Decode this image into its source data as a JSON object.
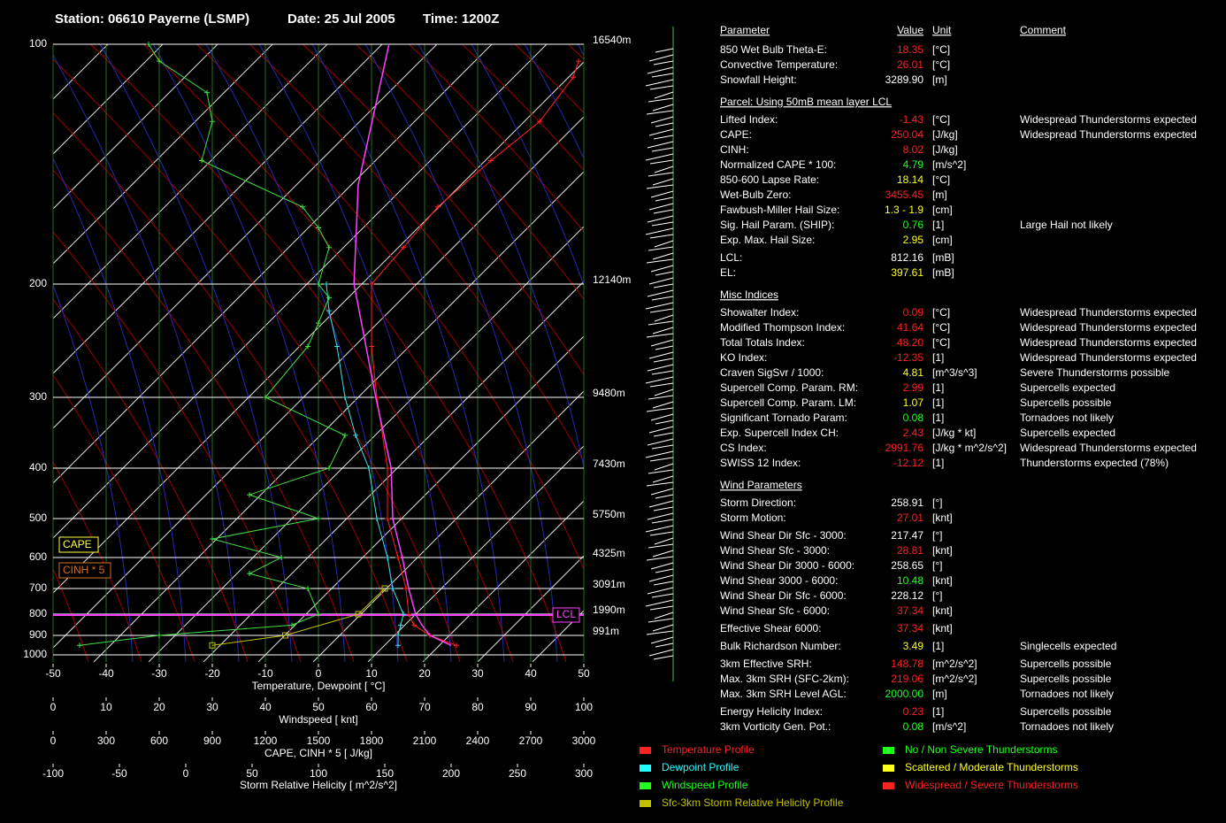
{
  "header": {
    "station": "Station: 06610 Payerne (LSMP)",
    "date": "Date: 25 Jul 2005",
    "time": "Time: 1200Z"
  },
  "diagram": {
    "pressure_ticks": [
      100,
      200,
      300,
      400,
      500,
      600,
      700,
      800,
      900,
      1000
    ],
    "height_labels": [
      "16540m",
      "12140m",
      "9480m",
      "7430m",
      "5750m",
      "4325m",
      "3091m",
      "1990m",
      "991m"
    ],
    "axes": {
      "temperature": {
        "label": "Temperature, Dewpoint  [ °C]",
        "lim": [
          -50,
          50
        ],
        "ticks": [
          -50,
          -40,
          -30,
          -20,
          -10,
          0,
          10,
          20,
          30,
          40,
          50
        ]
      },
      "windspeed": {
        "label": "Windspeed  [ knt]",
        "lim": [
          0,
          100
        ],
        "ticks": [
          0,
          10,
          20,
          30,
          40,
          50,
          60,
          70,
          80,
          90,
          100
        ]
      },
      "cape": {
        "label": "CAPE, CINH * 5  [ J/kg]",
        "lim": [
          0,
          3000
        ],
        "ticks": [
          0,
          300,
          600,
          900,
          1200,
          1500,
          1800,
          2100,
          2400,
          2700,
          3000
        ]
      },
      "srh": {
        "label": "Storm Relative Helicity  [ m^2/s^2]",
        "lim": [
          -100,
          300
        ],
        "ticks": [
          -100,
          -50,
          0,
          50,
          100,
          150,
          200,
          250,
          300
        ]
      }
    },
    "profiles": {
      "temperature": {
        "axis": "temperature",
        "color": "#ff2020",
        "pressure": [
          950,
          900,
          850,
          800,
          700,
          600,
          500,
          400,
          300,
          250,
          200,
          180,
          160,
          140,
          125,
          110,
          105
        ],
        "values": [
          26,
          21,
          18,
          17,
          16.5,
          15,
          13,
          13,
          11,
          10,
          10,
          16,
          22.5,
          32.5,
          41.7,
          48,
          49
        ]
      },
      "dewpoint": {
        "axis": "temperature",
        "color": "#40e0e0",
        "pressure": [
          950,
          900,
          850,
          800,
          700,
          600,
          500,
          400,
          350,
          300,
          250,
          220,
          200
        ],
        "values": [
          15,
          15,
          15.5,
          16,
          14,
          13,
          11,
          9.5,
          7,
          5,
          3.5,
          2,
          1.5
        ]
      },
      "parcel": {
        "axis": "temperature",
        "color": "#ff40ff",
        "pressure": [
          950,
          900,
          850,
          800,
          700,
          600,
          500,
          400,
          300,
          200,
          150,
          100
        ],
        "values": [
          25,
          21,
          19.5,
          18.3,
          17,
          15.8,
          14,
          13.7,
          10.8,
          6.7,
          7.5,
          13.3
        ]
      },
      "windspeed": {
        "axis": "windspeed",
        "color": "#40e040",
        "pressure": [
          950,
          900,
          850,
          800,
          700,
          650,
          600,
          550,
          500,
          450,
          400,
          350,
          300,
          250,
          230,
          210,
          200,
          180,
          170,
          160,
          140,
          125,
          115,
          105,
          100
        ],
        "values": [
          5,
          20,
          45,
          50,
          48,
          37,
          43,
          30,
          50,
          37,
          52,
          55,
          40,
          48,
          50,
          52,
          50,
          52,
          50,
          47,
          28,
          30,
          29,
          20,
          18
        ]
      },
      "srh": {
        "axis": "srh",
        "color": "#c0c000",
        "pressure": [
          950,
          900,
          800,
          700
        ],
        "values": [
          20,
          75,
          130,
          150
        ]
      }
    },
    "lcl_label": "LCL",
    "cape_label": "CAPE",
    "cinh_label": "CINH * 5"
  },
  "table": {
    "header": {
      "parameter": "Parameter",
      "value": "Value",
      "unit": "Unit",
      "comment": "Comment"
    },
    "sections": [
      {
        "rows": [
          {
            "name": "850 Wet Bulb Theta-E:",
            "value": "18.35",
            "unit": "[°C]",
            "color": "#ff2020"
          },
          {
            "name": "Convective Temperature:",
            "value": "26.01",
            "unit": "[°C]",
            "color": "#ff2020"
          },
          {
            "name": "Snowfall Height:",
            "value": "3289.90",
            "unit": "[m]",
            "color": "#ffffff"
          }
        ]
      },
      {
        "title": "Parcel: Using 50mB mean layer LCL",
        "rows": [
          {
            "name": "Lifted Index:",
            "value": "-1.43",
            "unit": "[°C]",
            "comment": "Widespread Thunderstorms expected",
            "color": "#ff2020"
          },
          {
            "name": "CAPE:",
            "value": "250.04",
            "unit": "[J/kg]",
            "comment": "Widespread Thunderstorms expected",
            "color": "#ff2020"
          },
          {
            "name": "CINH:",
            "value": "8.02",
            "unit": "[J/kg]",
            "color": "#ff2020"
          },
          {
            "name": "Normalized CAPE * 100:",
            "value": "4.79",
            "unit": "[m/s^2]",
            "color": "#20ff20"
          },
          {
            "name": "850-600 Lapse Rate:",
            "value": "18.14",
            "unit": "[°C]",
            "color": "#ffff20"
          },
          {
            "name": "Wet-Bulb Zero:",
            "value": "3455.45",
            "unit": "[m]",
            "color": "#ff2020"
          },
          {
            "name": "Fawbush-Miller Hail Size:",
            "value": "1.3 - 1.9",
            "unit": "[cm]",
            "color": "#ffff20"
          },
          {
            "name": "Sig. Hail Param. (SHIP):",
            "value": "0.76",
            "unit": "[1]",
            "comment": "Large Hail not likely",
            "color": "#20ff20"
          },
          {
            "name": "Exp. Max. Hail Size:",
            "value": "2.95",
            "unit": "[cm]",
            "color": "#ffff20"
          },
          {
            "name": "LCL:",
            "value": "812.16",
            "unit": "[mB]",
            "color": "#ffffff"
          },
          {
            "name": "EL:",
            "value": "397.61",
            "unit": "[mB]",
            "color": "#ffff20"
          }
        ]
      },
      {
        "title": "Misc Indices",
        "rows": [
          {
            "name": "Showalter Index:",
            "value": "0.09",
            "unit": "[°C]",
            "comment": "Widespread Thunderstorms expected",
            "color": "#ff2020"
          },
          {
            "name": "Modified Thompson Index:",
            "value": "41.64",
            "unit": "[°C]",
            "comment": "Widespread Thunderstorms expected",
            "color": "#ff2020"
          },
          {
            "name": "Total Totals Index:",
            "value": "48.20",
            "unit": "[°C]",
            "comment": "Widespread Thunderstorms expected",
            "color": "#ff2020"
          },
          {
            "name": "KO Index:",
            "value": "-12.35",
            "unit": "[1]",
            "comment": "Widespread Thunderstorms expected",
            "color": "#ff2020"
          },
          {
            "name": "Craven SigSvr / 1000:",
            "value": "4.81",
            "unit": "[m^3/s^3]",
            "comment": "Severe Thunderstorms possible",
            "color": "#ffff20"
          },
          {
            "name": "Supercell Comp. Param. RM:",
            "value": "2.99",
            "unit": "[1]",
            "comment": "Supercells expected",
            "color": "#ff2020"
          },
          {
            "name": "Supercell Comp. Param. LM:",
            "value": "1.07",
            "unit": "[1]",
            "comment": "Supercells possible",
            "color": "#ffff20"
          },
          {
            "name": "Significant Tornado Param:",
            "value": "0.08",
            "unit": "[1]",
            "comment": "Tornadoes not likely",
            "color": "#20ff20"
          },
          {
            "name": "Exp. Supercell Index CH:",
            "value": "2.43",
            "unit": "[J/kg * kt]",
            "comment": "Supercells expected",
            "color": "#ff2020"
          },
          {
            "name": "CS Index:",
            "value": "2991.76",
            "unit": "[J/kg * m^2/s^2]",
            "comment": "Widespread Thunderstorms expected",
            "color": "#ff2020"
          },
          {
            "name": "SWISS 12 Index:",
            "value": "-12.12",
            "unit": "[1]",
            "comment": "Thunderstorms expected (78%)",
            "color": "#ff2020"
          }
        ]
      },
      {
        "title": "Wind Parameters",
        "rows": [
          {
            "name": "Storm Direction:",
            "value": "258.91",
            "unit": "[°]",
            "color": "#ffffff"
          },
          {
            "name": "Storm Motion:",
            "value": "27.01",
            "unit": "[knt]",
            "color": "#ff2020"
          },
          {
            "name": "Wind Shear Dir Sfc - 3000:",
            "value": "217.47",
            "unit": "[°]",
            "color": "#ffffff"
          },
          {
            "name": "Wind Shear Sfc - 3000:",
            "value": "28.81",
            "unit": "[knt]",
            "color": "#ff2020"
          },
          {
            "name": "Wind Shear Dir 3000 - 6000:",
            "value": "258.65",
            "unit": "[°]",
            "color": "#ffffff"
          },
          {
            "name": "Wind Shear 3000 - 6000:",
            "value": "10.48",
            "unit": "[knt]",
            "color": "#20ff20"
          },
          {
            "name": "Wind Shear Dir Sfc - 6000:",
            "value": "228.12",
            "unit": "[°]",
            "color": "#ffffff"
          },
          {
            "name": "Wind Shear Sfc - 6000:",
            "value": "37.34",
            "unit": "[knt]",
            "color": "#ff2020"
          },
          {
            "name": "Effective Shear 6000:",
            "value": "37.34",
            "unit": "[knt]",
            "color": "#ff2020"
          },
          {
            "name": "Bulk Richardson Number:",
            "value": "3.49",
            "unit": "[1]",
            "comment": "Singlecells expected",
            "color": "#ffff20"
          },
          {
            "name": "3km Effective SRH:",
            "value": "148.78",
            "unit": "[m^2/s^2]",
            "comment": "Supercells possible",
            "color": "#ff2020"
          },
          {
            "name": "Max. 3km SRH (SFC-2km):",
            "value": "219.06",
            "unit": "[m^2/s^2]",
            "comment": "Supercells possible",
            "color": "#ff2020"
          },
          {
            "name": "Max. 3km SRH Level AGL:",
            "value": "2000.00",
            "unit": "[m]",
            "comment": "Tornadoes not likely",
            "color": "#20ff20"
          },
          {
            "name": "Energy Helicity Index:",
            "value": "0.23",
            "unit": "[1]",
            "comment": "Supercells possible",
            "color": "#ff2020"
          },
          {
            "name": "3km Vorticity Gen. Pot.:",
            "value": "0.08",
            "unit": "[m/s^2]",
            "comment": "Tornadoes not likely",
            "color": "#20ff20"
          }
        ]
      }
    ]
  },
  "legend": {
    "left": [
      {
        "label": "Temperature Profile",
        "color": "#ff2020"
      },
      {
        "label": "Dewpoint Profile",
        "color": "#20ffff"
      },
      {
        "label": "Windspeed Profile",
        "color": "#20ff20"
      },
      {
        "label": "Sfc-3km Storm Relative Helicity Profile",
        "color": "#c0c000"
      }
    ],
    "right": [
      {
        "label": "No / Non Severe Thunderstorms",
        "color": "#20ff20"
      },
      {
        "label": "Scattered / Moderate Thunderstorms",
        "color": "#ffff20"
      },
      {
        "label": "Widespread / Severe Thunderstorms",
        "color": "#ff2020"
      }
    ]
  }
}
